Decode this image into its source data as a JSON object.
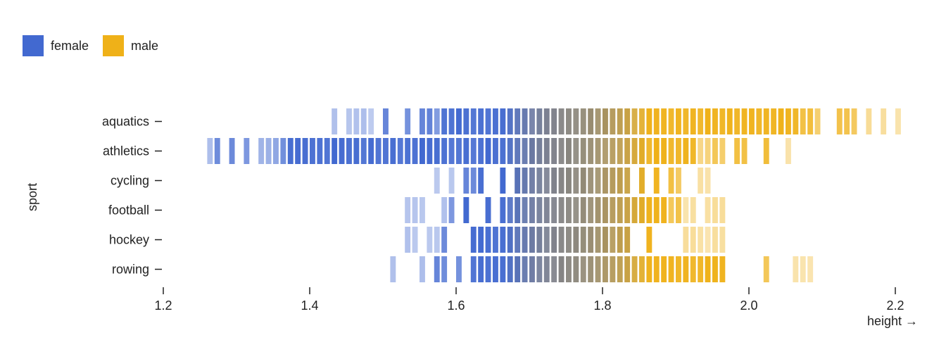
{
  "legend": {
    "items": [
      {
        "label": "female",
        "color": "#4269d0"
      },
      {
        "label": "male",
        "color": "#efb118"
      }
    ]
  },
  "chart_data": {
    "type": "heatmap",
    "title": "",
    "xlabel": "height →",
    "ylabel": "sport",
    "xlim": [
      1.2,
      2.2
    ],
    "xticks": [
      "1.2",
      "1.4",
      "1.6",
      "1.8",
      "2.0",
      "2.2"
    ],
    "bin_width": 0.01,
    "grid": false,
    "legend_position": "top-left",
    "categories": [
      "aquatics",
      "athletics",
      "cycling",
      "football",
      "hockey",
      "rowing"
    ],
    "series": [
      {
        "name": "female",
        "color": "#4269d0"
      },
      {
        "name": "male",
        "color": "#efb118"
      }
    ],
    "rows": [
      {
        "sport": "aquatics",
        "ranges": [
          1.43,
          2.21
        ],
        "extent": [
          1.43,
          2.07,
          2.21
        ]
      },
      {
        "sport": "athletics",
        "ranges": [
          1.21,
          2.08
        ],
        "extent": [
          1.21,
          2.08,
          2.08
        ]
      },
      {
        "sport": "cycling",
        "ranges": [
          1.55,
          1.96
        ],
        "extent": [
          1.55,
          1.96,
          1.96
        ]
      },
      {
        "sport": "football",
        "ranges": [
          1.53,
          1.96
        ],
        "extent": [
          1.53,
          1.96,
          1.96
        ]
      },
      {
        "sport": "hockey",
        "ranges": [
          1.52,
          1.96
        ],
        "extent": [
          1.52,
          1.96,
          1.96
        ]
      },
      {
        "sport": "rowing",
        "ranges": [
          1.5,
          2.09
        ],
        "extent": [
          1.5,
          2.09,
          2.09
        ]
      }
    ]
  }
}
